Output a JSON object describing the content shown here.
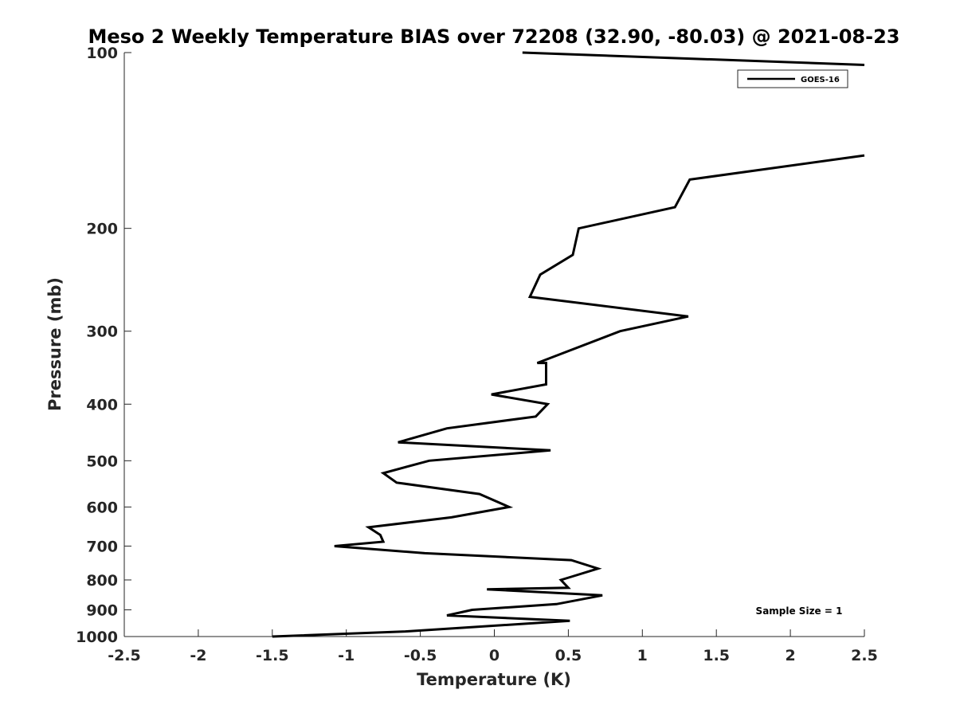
{
  "chart_data": {
    "type": "line",
    "title": "Meso 2 Weekly Temperature BIAS over 72208 (32.90, -80.03) @ 2021-08-23",
    "xlabel": "Temperature (K)",
    "ylabel": "Pressure (mb)",
    "xlim": [
      -2.5,
      2.5
    ],
    "ylim": [
      100,
      1000
    ],
    "y_scale": "log",
    "y_reversed": true,
    "x_ticks": [
      "-2.5",
      "-2",
      "-1.5",
      "-1",
      "-0.5",
      "0",
      "0.5",
      "1",
      "1.5",
      "2",
      "2.5"
    ],
    "y_ticks": [
      "100",
      "200",
      "300",
      "400",
      "500",
      "600",
      "700",
      "800",
      "900",
      "1000"
    ],
    "grid": false,
    "legend": {
      "placement": "top-right",
      "entries": [
        "GOES-16"
      ]
    },
    "annotation": "Sample Size = 1",
    "series": [
      {
        "name": "GOES-16",
        "color": "#000000",
        "segments": [
          [
            {
              "x": 0.19,
              "y": 100
            },
            {
              "x": 2.5,
              "y": 105
            }
          ],
          [
            {
              "x": 2.5,
              "y": 150
            },
            {
              "x": 1.32,
              "y": 165
            },
            {
              "x": 1.22,
              "y": 184
            },
            {
              "x": 0.57,
              "y": 200
            },
            {
              "x": 0.53,
              "y": 222
            },
            {
              "x": 0.31,
              "y": 240
            },
            {
              "x": 0.24,
              "y": 262
            },
            {
              "x": 1.31,
              "y": 283
            },
            {
              "x": 0.85,
              "y": 300
            },
            {
              "x": 0.29,
              "y": 340
            },
            {
              "x": 0.35,
              "y": 340
            },
            {
              "x": 0.35,
              "y": 370
            },
            {
              "x": -0.02,
              "y": 385
            },
            {
              "x": 0.36,
              "y": 400
            },
            {
              "x": 0.28,
              "y": 420
            },
            {
              "x": -0.32,
              "y": 440
            },
            {
              "x": -0.65,
              "y": 465
            },
            {
              "x": 0.38,
              "y": 480
            },
            {
              "x": -0.44,
              "y": 500
            },
            {
              "x": -0.75,
              "y": 525
            },
            {
              "x": -0.66,
              "y": 545
            },
            {
              "x": -0.1,
              "y": 570
            },
            {
              "x": 0.1,
              "y": 600
            },
            {
              "x": -0.29,
              "y": 625
            },
            {
              "x": -0.85,
              "y": 650
            },
            {
              "x": -0.77,
              "y": 670
            },
            {
              "x": -0.75,
              "y": 688
            },
            {
              "x": -1.08,
              "y": 700
            },
            {
              "x": -0.47,
              "y": 720
            },
            {
              "x": 0.52,
              "y": 740
            },
            {
              "x": 0.7,
              "y": 765
            },
            {
              "x": 0.52,
              "y": 790
            },
            {
              "x": 0.45,
              "y": 800
            },
            {
              "x": 0.5,
              "y": 825
            },
            {
              "x": -0.05,
              "y": 830
            },
            {
              "x": 0.73,
              "y": 850
            },
            {
              "x": 0.42,
              "y": 880
            },
            {
              "x": -0.15,
              "y": 900
            },
            {
              "x": -0.32,
              "y": 920
            },
            {
              "x": 0.51,
              "y": 940
            },
            {
              "x": -0.6,
              "y": 980
            },
            {
              "x": -1.5,
              "y": 1000
            }
          ]
        ]
      }
    ]
  }
}
